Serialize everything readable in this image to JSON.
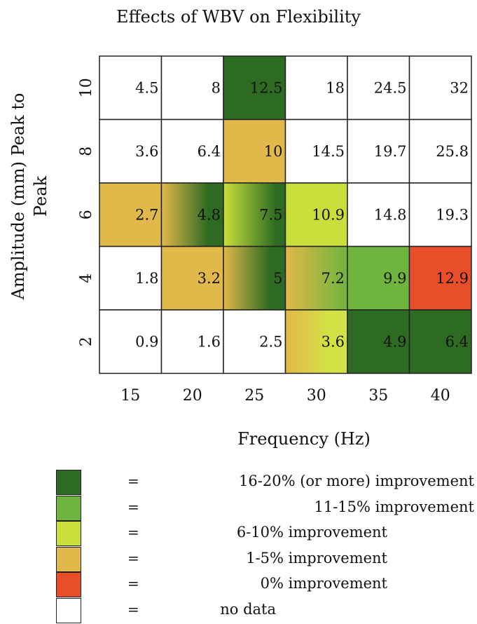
{
  "chart_data": {
    "type": "heatmap",
    "title": "Effects of WBV on Flexibility",
    "xlabel": "Frequency (Hz)",
    "ylabel_lines": [
      "Amplitude (mm) Peak to",
      "Peak"
    ],
    "x": [
      "15",
      "20",
      "25",
      "30",
      "35",
      "40"
    ],
    "y": [
      "10",
      "8",
      "6",
      "4",
      "2"
    ],
    "values": [
      [
        "4.5",
        "8",
        "12.5",
        "18",
        "24.5",
        "32"
      ],
      [
        "3.6",
        "6.4",
        "10",
        "14.5",
        "19.7",
        "25.8"
      ],
      [
        "2.7",
        "4.8",
        "7.5",
        "10.9",
        "14.8",
        "19.3"
      ],
      [
        "1.8",
        "3.2",
        "5",
        "7.2",
        "9.9",
        "12.9"
      ],
      [
        "0.9",
        "1.6",
        "2.5",
        "3.6",
        "4.9",
        "6.4"
      ]
    ],
    "fill": [
      [
        "none",
        "none",
        "dark",
        "none",
        "none",
        "none"
      ],
      [
        "none",
        "none",
        "orange",
        "none",
        "none",
        "none"
      ],
      [
        "orange",
        "orange-dark",
        "yellow-dark",
        "yellow",
        "none",
        "none"
      ],
      [
        "none",
        "orange",
        "orange-dark",
        "orange-green",
        "green",
        "red"
      ],
      [
        "none",
        "none",
        "none",
        "orange-yellow",
        "dark",
        "dark"
      ]
    ],
    "colors": {
      "dark": "#2e6b22",
      "green": "#6fb43e",
      "yellow": "#c9e03a",
      "orange": "#e1b84a",
      "red": "#e94e2b",
      "none": "#ffffff"
    },
    "legend": [
      {
        "color": "#2e6b22",
        "eq": "=",
        "label": "16-20% (or more) improvement"
      },
      {
        "color": "#6fb43e",
        "eq": "=",
        "label": "11-15% improvement"
      },
      {
        "color": "#c9e03a",
        "eq": "=",
        "label": "6-10% improvement"
      },
      {
        "color": "#e1b84a",
        "eq": "=",
        "label": "1-5% improvement"
      },
      {
        "color": "#e94e2b",
        "eq": "=",
        "label": "0% improvement"
      },
      {
        "color": "#ffffff",
        "eq": "=",
        "label": "no data"
      }
    ]
  }
}
